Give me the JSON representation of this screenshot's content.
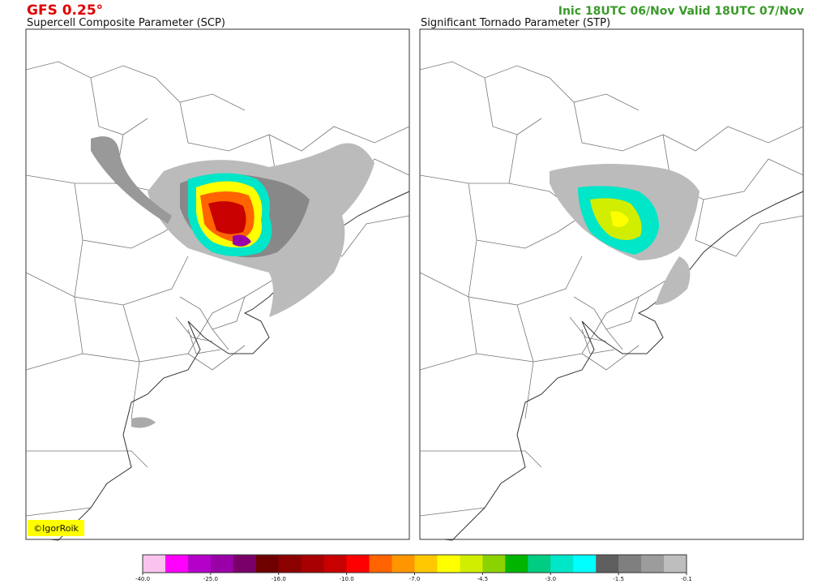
{
  "header": {
    "title": "GFS 0.25°",
    "run": "Inic 18UTC 06/Nov  Valid 18UTC 07/Nov"
  },
  "panels": [
    {
      "title": "Supercell Composite Parameter (SCP)"
    },
    {
      "title": "Significant Tornado Parameter (STP)"
    }
  ],
  "credit": "©IgorRoik",
  "colorbar": {
    "colors": [
      "#f8c4ee",
      "#ff00ff",
      "#b400c8",
      "#9a00a8",
      "#780068",
      "#6e0000",
      "#8c0000",
      "#a80000",
      "#c80000",
      "#ff0000",
      "#ff6400",
      "#ff9600",
      "#ffc800",
      "#ffff00",
      "#d2ee00",
      "#8cd200",
      "#00b400",
      "#00cc82",
      "#00e6c8",
      "#00ffff",
      "#5f5f5f",
      "#7f7f7f",
      "#9c9c9c",
      "#bebebe"
    ],
    "ticks": [
      {
        "value": -40,
        "label": "-40.0"
      },
      {
        "value": -25,
        "label": "-25.0"
      },
      {
        "value": -16,
        "label": "-16.0"
      },
      {
        "value": -10,
        "label": "-10.0"
      },
      {
        "value": -7,
        "label": "-7.0"
      },
      {
        "value": -4.5,
        "label": "-4.5"
      },
      {
        "value": -3,
        "label": "-3.0"
      },
      {
        "value": -1.5,
        "label": "-1.5"
      },
      {
        "value": -0.1,
        "label": "-0.1"
      }
    ]
  }
}
